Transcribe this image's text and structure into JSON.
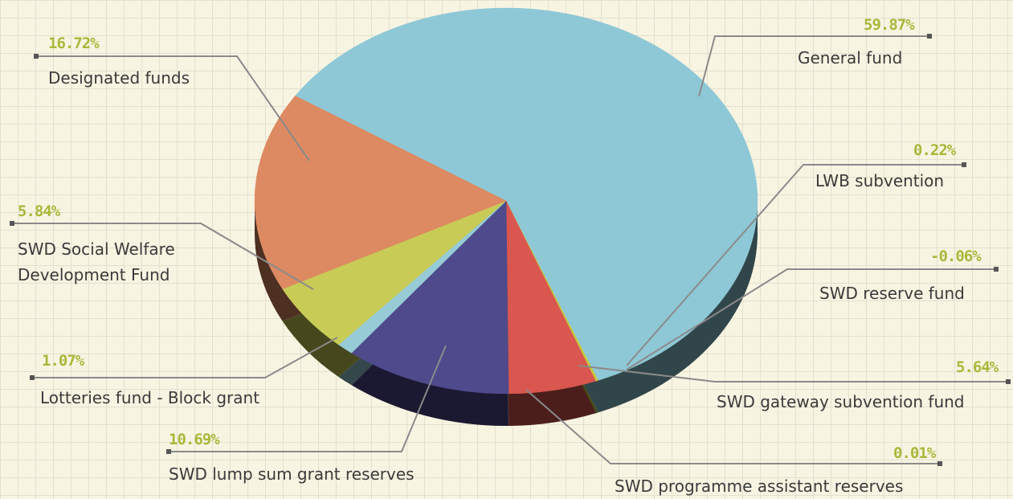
{
  "chart_data": {
    "type": "pie",
    "categories": [
      "General fund",
      "LWB subvention",
      "SWD reserve fund",
      "SWD gateway subvention fund",
      "SWD programme assistant reserves",
      "SWD lump sum grant reserves",
      "Lotteries fund - Block grant",
      "SWD Social Welfare Development Fund",
      "Designated funds"
    ],
    "values": [
      59.87,
      0.22,
      -0.06,
      5.64,
      0.01,
      10.69,
      1.07,
      5.84,
      16.72
    ],
    "value_labels": [
      "59.87%",
      "0.22%",
      "-0.06%",
      "5.64%",
      "0.01%",
      "10.69%",
      "1.07%",
      "5.84%",
      "16.72%"
    ],
    "colors": [
      "#8ec8d6",
      "#c9c83a",
      "#b7b48a",
      "#d9574f",
      "#b05048",
      "#4e4a8c",
      "#97cbd6",
      "#c8cb55",
      "#dd8a62"
    ]
  }
}
